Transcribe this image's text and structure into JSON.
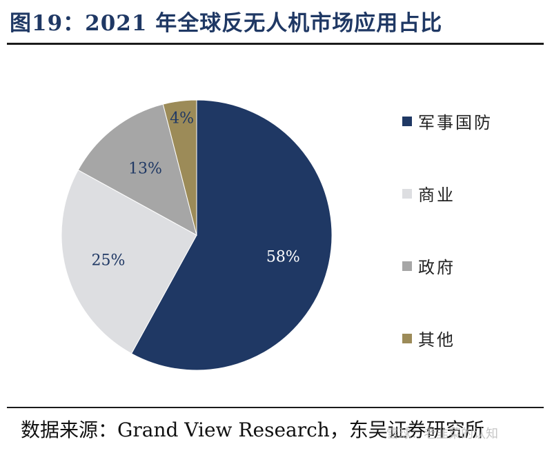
{
  "header": {
    "title": "图19：2021 年全球反无人机市场应用占比"
  },
  "footer": {
    "source": "数据来源：Grand View Research，东吴证券研究所"
  },
  "watermark": {
    "text": "雪球：老韭菜的认知"
  },
  "chart_data": {
    "type": "pie",
    "title": "图19：2021 年全球反无人机市场应用占比",
    "legend_position": "right",
    "categories": [
      "军事国防",
      "商业",
      "政府",
      "其他"
    ],
    "values": [
      58,
      25,
      13,
      4
    ],
    "value_labels": [
      "58%",
      "25%",
      "13%",
      "4%"
    ],
    "colors": [
      "#1f3864",
      "#dddee1",
      "#a6a6a6",
      "#9c8b58"
    ],
    "label_colors": [
      "#ffffff",
      "#1f3864",
      "#1f3864",
      "#1f3864"
    ]
  }
}
